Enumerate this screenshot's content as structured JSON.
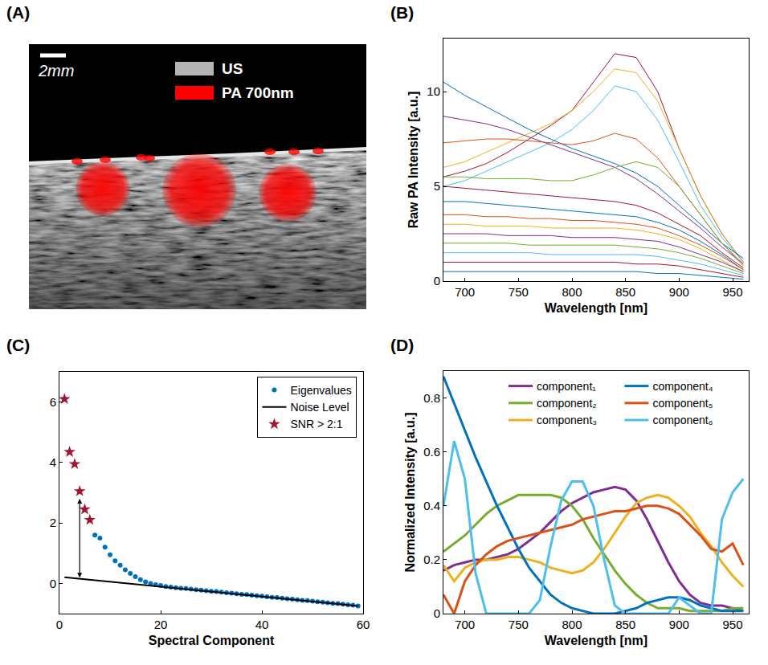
{
  "chart_data": [
    {
      "type": "image",
      "panel": "(A)",
      "annotations": [
        "2mm"
      ],
      "series": [
        {
          "name": "US",
          "color": "#b4b4b4"
        },
        {
          "name": "PA 700nm",
          "color": "#ff0000"
        }
      ]
    },
    {
      "type": "line",
      "panel": "(B)",
      "x_label": "Wavelength [nm]",
      "y_label": "Raw PA Intensity [a.u.]",
      "x": [
        680,
        700,
        720,
        740,
        760,
        780,
        800,
        820,
        840,
        860,
        880,
        900,
        920,
        940,
        960
      ],
      "series": [
        {
          "color": "#a2142f",
          "values": [
            5.5,
            5.8,
            6.2,
            6.8,
            7.5,
            8.2,
            9,
            10.5,
            12,
            11.8,
            10,
            7,
            4.5,
            2.5,
            1
          ]
        },
        {
          "color": "#edb120",
          "values": [
            6,
            6.3,
            6.8,
            7.3,
            7.8,
            8.3,
            9,
            10,
            11.2,
            11,
            9.5,
            7,
            4.5,
            2.5,
            1
          ]
        },
        {
          "color": "#4dbeee",
          "values": [
            5,
            5.3,
            5.8,
            6.3,
            6.8,
            7.3,
            8,
            9,
            10.3,
            10,
            8.5,
            6.3,
            4,
            2.3,
            1
          ]
        },
        {
          "color": "#0072bd",
          "values": [
            10.5,
            9.8,
            9.2,
            8.6,
            8,
            7.5,
            7,
            6.6,
            6.2,
            5.7,
            5,
            4,
            3,
            2,
            1.2
          ]
        },
        {
          "color": "#7e2f8e",
          "values": [
            8.7,
            8.5,
            8.3,
            8,
            7.6,
            7.2,
            6.8,
            6.4,
            6,
            5.4,
            4.6,
            3.7,
            2.8,
            1.8,
            0.9
          ]
        },
        {
          "color": "#d95319",
          "values": [
            7.3,
            7.4,
            7.5,
            7.5,
            7.4,
            7.3,
            7.2,
            7.4,
            7.8,
            7.5,
            6.5,
            5,
            3.5,
            2,
            0.9
          ]
        },
        {
          "color": "#77ac30",
          "values": [
            5.5,
            5.5,
            5.4,
            5.4,
            5.4,
            5.3,
            5.3,
            5.6,
            6,
            6.3,
            6,
            5,
            3.5,
            2,
            0.8
          ]
        },
        {
          "color": "#a2142f",
          "values": [
            5,
            4.9,
            4.8,
            4.7,
            4.6,
            4.5,
            4.4,
            4.3,
            4.2,
            4,
            3.6,
            3,
            2.4,
            1.5,
            0.7
          ]
        },
        {
          "color": "#0072bd",
          "values": [
            4.2,
            4.2,
            4.1,
            4,
            3.9,
            3.8,
            3.7,
            3.6,
            3.5,
            3.4,
            3.1,
            2.7,
            2.1,
            1.4,
            0.6
          ]
        },
        {
          "color": "#d95319",
          "values": [
            3.5,
            3.5,
            3.4,
            3.4,
            3.3,
            3.3,
            3.2,
            3.2,
            3.1,
            3,
            2.8,
            2.4,
            1.9,
            1.3,
            0.6
          ]
        },
        {
          "color": "#edb120",
          "values": [
            3,
            3,
            2.9,
            2.9,
            2.9,
            2.8,
            2.8,
            2.8,
            2.8,
            2.7,
            2.5,
            2.2,
            1.7,
            1.1,
            0.5
          ]
        },
        {
          "color": "#7e2f8e",
          "values": [
            2.5,
            2.5,
            2.5,
            2.4,
            2.4,
            2.4,
            2.3,
            2.3,
            2.3,
            2.2,
            2.1,
            1.8,
            1.4,
            1,
            0.5
          ]
        },
        {
          "color": "#77ac30",
          "values": [
            2,
            2,
            2,
            2,
            1.9,
            1.9,
            1.9,
            1.9,
            1.9,
            1.8,
            1.7,
            1.5,
            1.2,
            0.8,
            0.4
          ]
        },
        {
          "color": "#4dbeee",
          "values": [
            1.5,
            1.5,
            1.5,
            1.5,
            1.5,
            1.4,
            1.4,
            1.4,
            1.4,
            1.4,
            1.3,
            1.1,
            0.9,
            0.6,
            0.3
          ]
        },
        {
          "color": "#a2142f",
          "values": [
            1,
            1,
            1,
            1,
            1,
            1,
            1,
            1,
            1,
            0.9,
            0.9,
            0.8,
            0.6,
            0.4,
            0.2
          ]
        },
        {
          "color": "#0072bd",
          "values": [
            0.5,
            0.5,
            0.5,
            0.5,
            0.5,
            0.5,
            0.5,
            0.5,
            0.5,
            0.5,
            0.4,
            0.4,
            0.3,
            0.2,
            0.1
          ]
        }
      ],
      "xlim": [
        680,
        965
      ],
      "xticks": [
        700,
        750,
        800,
        850,
        900,
        950
      ],
      "ylim": [
        0,
        12.8
      ],
      "yticks": [
        0,
        5,
        10
      ]
    },
    {
      "type": "scatter",
      "panel": "(C)",
      "x_label": "Spectral Component",
      "legend": "upper right",
      "series": [
        {
          "name": "Eigenvalues",
          "color": "#0072bd",
          "marker": "dot",
          "x": [
            1,
            2,
            3,
            4,
            5,
            6,
            7,
            8,
            9,
            10,
            11,
            12,
            13,
            14,
            15,
            16,
            17,
            18,
            19,
            20,
            21,
            22,
            23,
            24,
            25,
            26,
            27,
            28,
            29,
            30,
            31,
            32,
            33,
            34,
            35,
            36,
            37,
            38,
            39,
            40,
            41,
            42,
            43,
            44,
            45,
            46,
            47,
            48,
            49,
            50,
            51,
            52,
            53,
            54,
            55,
            56,
            57,
            58,
            59
          ],
          "values": [
            6.1,
            4.35,
            3.95,
            3.05,
            2.45,
            2.1,
            1.6,
            1.5,
            1.2,
            0.95,
            0.75,
            0.6,
            0.45,
            0.33,
            0.22,
            0.12,
            0.05,
            0.0,
            -0.04,
            -0.07,
            -0.1,
            -0.12,
            -0.14,
            -0.16,
            -0.17,
            -0.19,
            -0.21,
            -0.22,
            -0.24,
            -0.26,
            -0.27,
            -0.29,
            -0.31,
            -0.32,
            -0.34,
            -0.36,
            -0.37,
            -0.39,
            -0.41,
            -0.42,
            -0.44,
            -0.46,
            -0.47,
            -0.49,
            -0.51,
            -0.52,
            -0.54,
            -0.56,
            -0.57,
            -0.59,
            -0.61,
            -0.62,
            -0.64,
            -0.66,
            -0.67,
            -0.69,
            -0.71,
            -0.72,
            -0.75
          ]
        },
        {
          "name": "Noise Level",
          "type": "line",
          "color": "#000000",
          "line_style": "solid",
          "x": [
            1,
            59
          ],
          "values": [
            0.2,
            -0.75
          ]
        },
        {
          "name": "SNR > 2:1",
          "color": "#a2142f",
          "marker": "star",
          "x": [
            1,
            2,
            3,
            4,
            5,
            6
          ],
          "values": [
            6.1,
            4.35,
            3.95,
            3.05,
            2.45,
            2.1
          ]
        }
      ],
      "xlim": [
        0,
        60
      ],
      "xticks": [
        0,
        20,
        40,
        60
      ],
      "ylim": [
        -1,
        7
      ],
      "yticks": [
        0,
        2,
        4,
        6
      ]
    },
    {
      "type": "line",
      "panel": "(D)",
      "x_label": "Wavelength [nm]",
      "y_label": "Normalized Intensity [a.u.]",
      "legend": "top",
      "x": [
        680,
        690,
        700,
        710,
        720,
        730,
        740,
        750,
        760,
        770,
        780,
        790,
        800,
        810,
        820,
        830,
        840,
        850,
        860,
        870,
        880,
        890,
        900,
        910,
        920,
        930,
        940,
        950,
        960
      ],
      "series": [
        {
          "name": "component₁",
          "color": "#7e2f8e",
          "values": [
            0.16,
            0.18,
            0.19,
            0.2,
            0.2,
            0.21,
            0.22,
            0.24,
            0.27,
            0.3,
            0.34,
            0.38,
            0.41,
            0.43,
            0.45,
            0.46,
            0.47,
            0.46,
            0.42,
            0.35,
            0.27,
            0.19,
            0.12,
            0.07,
            0.04,
            0.03,
            0.03,
            0.02,
            0.01
          ]
        },
        {
          "name": "component₂",
          "color": "#77ac30",
          "values": [
            0.23,
            0.26,
            0.29,
            0.33,
            0.37,
            0.4,
            0.42,
            0.44,
            0.44,
            0.44,
            0.44,
            0.43,
            0.4,
            0.35,
            0.28,
            0.22,
            0.16,
            0.11,
            0.07,
            0.04,
            0.02,
            0.02,
            0.02,
            0.01,
            0.01,
            0.01,
            0.01,
            0.02,
            0.02
          ]
        },
        {
          "name": "component₃",
          "color": "#edb120",
          "values": [
            0.18,
            0.12,
            0.17,
            0.19,
            0.2,
            0.2,
            0.21,
            0.21,
            0.2,
            0.19,
            0.17,
            0.16,
            0.15,
            0.16,
            0.19,
            0.24,
            0.3,
            0.36,
            0.41,
            0.43,
            0.44,
            0.43,
            0.4,
            0.36,
            0.3,
            0.25,
            0.19,
            0.14,
            0.1
          ]
        },
        {
          "name": "component₄",
          "color": "#0072bd",
          "values": [
            0.88,
            0.78,
            0.68,
            0.58,
            0.49,
            0.4,
            0.32,
            0.24,
            0.17,
            0.12,
            0.07,
            0.04,
            0.02,
            0.01,
            0,
            0,
            0,
            0.01,
            0.02,
            0.04,
            0.05,
            0.06,
            0.06,
            0.05,
            0.03,
            0.02,
            0.01,
            0.01,
            0.01
          ]
        },
        {
          "name": "component₅",
          "color": "#d95319",
          "values": [
            0.07,
            0.0,
            0.12,
            0.18,
            0.22,
            0.25,
            0.27,
            0.28,
            0.29,
            0.3,
            0.31,
            0.32,
            0.33,
            0.35,
            0.36,
            0.37,
            0.38,
            0.38,
            0.39,
            0.4,
            0.4,
            0.39,
            0.37,
            0.33,
            0.29,
            0.24,
            0.23,
            0.26,
            0.18
          ]
        },
        {
          "name": "component₆",
          "color": "#4dbeee",
          "values": [
            0.4,
            0.64,
            0.5,
            0.15,
            0,
            0,
            0,
            0,
            0,
            0.05,
            0.25,
            0.42,
            0.49,
            0.49,
            0.4,
            0.2,
            0.03,
            0,
            0,
            0,
            0,
            0,
            0.06,
            0.03,
            0,
            0,
            0.35,
            0.45,
            0.5
          ]
        }
      ],
      "xlim": [
        680,
        965
      ],
      "xticks": [
        700,
        750,
        800,
        850,
        900,
        950
      ],
      "ylim": [
        0,
        0.9
      ],
      "yticks": [
        0,
        0.2,
        0.4,
        0.6,
        0.8
      ]
    }
  ]
}
